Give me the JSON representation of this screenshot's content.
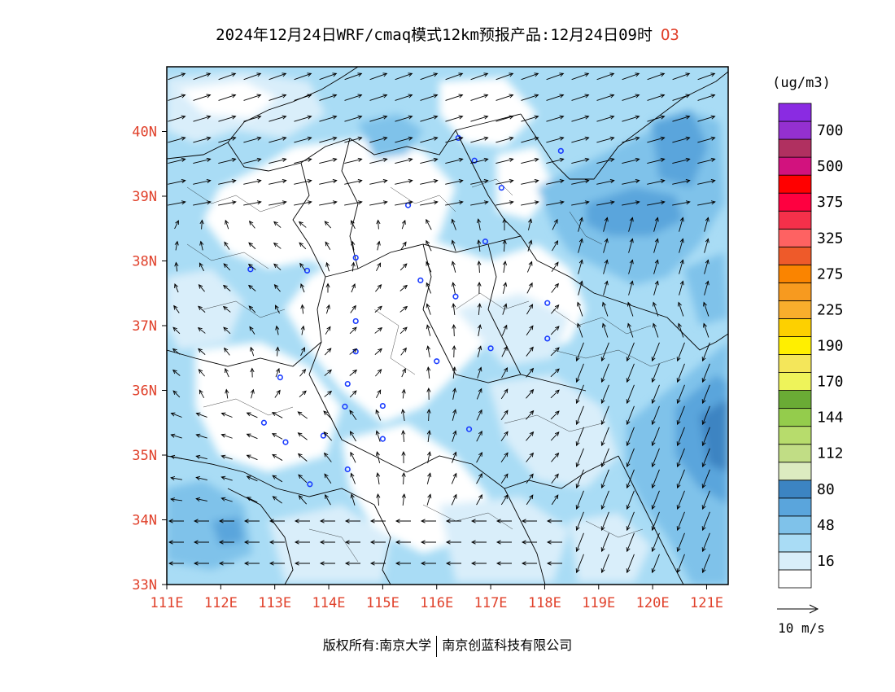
{
  "title": {
    "text": "2024年12月24日WRF/cmaq模式12km预报产品:12月24日09时",
    "species": "O3"
  },
  "map": {
    "lon_range": [
      111,
      121.4
    ],
    "lat_range": [
      33,
      41
    ],
    "lon_ticks": [
      "111E",
      "112E",
      "113E",
      "114E",
      "115E",
      "116E",
      "117E",
      "118E",
      "119E",
      "120E",
      "121E"
    ],
    "lat_ticks": [
      "33N",
      "34N",
      "35N",
      "36N",
      "37N",
      "38N",
      "39N",
      "40N"
    ],
    "cities": [
      [
        116.4,
        39.9
      ],
      [
        116.7,
        39.55
      ],
      [
        117.2,
        39.13
      ],
      [
        115.47,
        38.86
      ],
      [
        116.9,
        38.3
      ],
      [
        114.5,
        38.05
      ],
      [
        112.55,
        37.87
      ],
      [
        113.6,
        37.85
      ],
      [
        115.7,
        37.7
      ],
      [
        116.35,
        37.45
      ],
      [
        118.05,
        37.35
      ],
      [
        114.5,
        37.07
      ],
      [
        118.05,
        36.8
      ],
      [
        117.0,
        36.65
      ],
      [
        114.5,
        36.6
      ],
      [
        116.0,
        36.45
      ],
      [
        113.1,
        36.2
      ],
      [
        114.35,
        36.1
      ],
      [
        115.0,
        35.76
      ],
      [
        114.3,
        35.75
      ],
      [
        112.8,
        35.5
      ],
      [
        116.6,
        35.4
      ],
      [
        113.2,
        35.2
      ],
      [
        113.9,
        35.3
      ],
      [
        115.0,
        35.25
      ],
      [
        114.35,
        34.78
      ],
      [
        113.65,
        34.55
      ],
      [
        118.3,
        39.7
      ]
    ]
  },
  "legend": {
    "unit": "(ug/m3)",
    "levels": [
      {
        "color": "#ffffff",
        "label": ""
      },
      {
        "color": "#d9eefa",
        "label": "16"
      },
      {
        "color": "#a9dcf5",
        "label": ""
      },
      {
        "color": "#7fc2ea",
        "label": "48"
      },
      {
        "color": "#5aa5dc",
        "label": ""
      },
      {
        "color": "#3c84c2",
        "label": "80"
      },
      {
        "color": "#dcebc0",
        "label": ""
      },
      {
        "color": "#c1dd85",
        "label": "112"
      },
      {
        "color": "#b7dc6c",
        "label": ""
      },
      {
        "color": "#94cc4c",
        "label": "144"
      },
      {
        "color": "#6aab35",
        "label": ""
      },
      {
        "color": "#eef35a",
        "label": "170"
      },
      {
        "color": "#f4e65a",
        "label": ""
      },
      {
        "color": "#ffef00",
        "label": "190"
      },
      {
        "color": "#fdd000",
        "label": ""
      },
      {
        "color": "#f9ae2c",
        "label": "225"
      },
      {
        "color": "#f79a1f",
        "label": ""
      },
      {
        "color": "#fa8400",
        "label": "275"
      },
      {
        "color": "#ee5a2a",
        "label": ""
      },
      {
        "color": "#fe6262",
        "label": "325"
      },
      {
        "color": "#f5304a",
        "label": ""
      },
      {
        "color": "#fe0040",
        "label": "375"
      },
      {
        "color": "#ff0000",
        "label": ""
      },
      {
        "color": "#d2127e",
        "label": "500"
      },
      {
        "color": "#b03060",
        "label": ""
      },
      {
        "color": "#9430d0",
        "label": "700"
      },
      {
        "color": "#8a2be2",
        "label": ""
      }
    ],
    "vector_ref": "10 m/s"
  },
  "footer": {
    "left": "版权所有:南京大学",
    "right": "南京创蓝科技有限公司"
  }
}
